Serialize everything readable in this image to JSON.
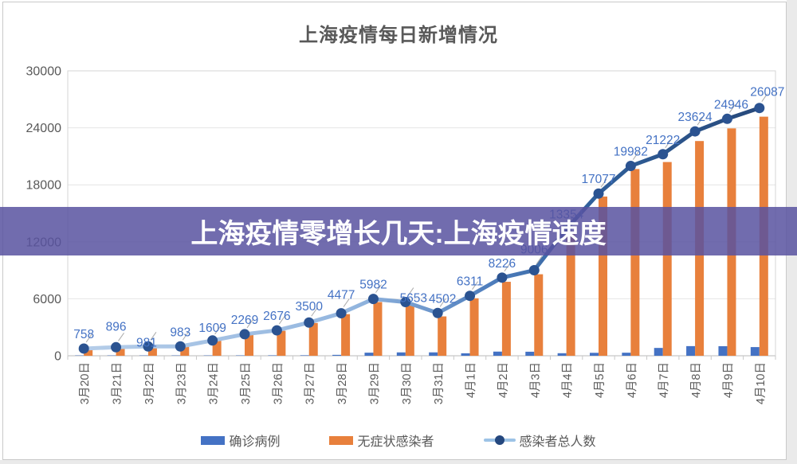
{
  "banner": {
    "text": "上海疫情零增长几天:上海疫情速度"
  },
  "chart_data": {
    "type": "bar",
    "subtype": "clustered-bars-with-line-overlay",
    "title": "上海疫情每日新增情况",
    "categories": [
      "3月20日",
      "3月21日",
      "3月22日",
      "3月23日",
      "3月24日",
      "3月25日",
      "3月26日",
      "3月27日",
      "3月28日",
      "3月29日",
      "3月30日",
      "3月31日",
      "4月1日",
      "4月2日",
      "4月3日",
      "4月4日",
      "4月5日",
      "4月6日",
      "4月7日",
      "4月8日",
      "4月9日",
      "4月10日"
    ],
    "series": [
      {
        "name": "确诊病例",
        "type": "bar",
        "color": "#4472c4",
        "values": [
          24,
          31,
          4,
          4,
          29,
          38,
          45,
          50,
          96,
          326,
          355,
          358,
          260,
          438,
          425,
          268,
          311,
          322,
          824,
          1015,
          1006,
          914
        ]
      },
      {
        "name": "无症状感染者",
        "type": "bar",
        "color": "#e8803c",
        "values": [
          734,
          865,
          977,
          979,
          1580,
          2231,
          2631,
          3450,
          4381,
          5656,
          5298,
          4144,
          6051,
          7788,
          8581,
          13086,
          16766,
          19660,
          20398,
          22609,
          23940,
          25173
        ]
      },
      {
        "name": "感染者总人数",
        "type": "line",
        "color": "#2e5596",
        "color_gradient": [
          "#b5cde9",
          "#27497b"
        ],
        "marker_color": "#2b5391",
        "labeled": true,
        "values": [
          758,
          896,
          981,
          983,
          1609,
          2269,
          2676,
          3500,
          4477,
          5982,
          5653,
          4502,
          6311,
          8226,
          9006,
          13354,
          17077,
          19982,
          21222,
          23624,
          24946,
          26087
        ]
      }
    ],
    "xlabel": "",
    "ylabel": "",
    "ylim": [
      0,
      30000
    ],
    "yticks": [
      0,
      6000,
      12000,
      18000,
      24000,
      30000
    ],
    "grid": true,
    "legend_position": "bottom",
    "data_label_color": "#4472c4",
    "axis_text_color": "#595959"
  },
  "colors": {
    "banner_bg": "rgba(88,82,160,0.85)",
    "banner_text": "#ffffff",
    "title_text": "#595959",
    "gridline": "#e4e4e4",
    "plot_border": "#d6d6d6",
    "axis_line": "#c8c8c8"
  }
}
